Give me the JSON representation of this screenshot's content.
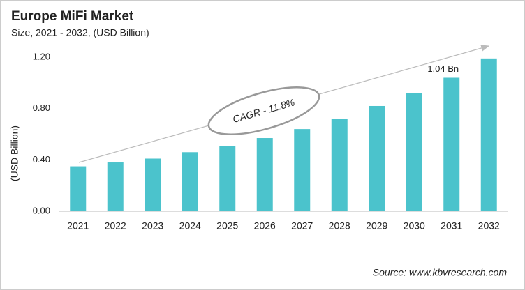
{
  "chart_data": {
    "type": "bar",
    "title": "Europe MiFi Market",
    "subtitle": "Size, 2021 - 2032, (USD Billion)",
    "y_label": "(USD Billion)",
    "categories": [
      "2021",
      "2022",
      "2023",
      "2024",
      "2025",
      "2026",
      "2027",
      "2028",
      "2029",
      "2030",
      "2031",
      "2032"
    ],
    "values": [
      0.35,
      0.38,
      0.41,
      0.46,
      0.51,
      0.57,
      0.64,
      0.72,
      0.82,
      0.92,
      1.04,
      1.19
    ],
    "value_labels": [
      null,
      null,
      null,
      null,
      null,
      null,
      null,
      null,
      null,
      null,
      "1.04 Bn",
      null
    ],
    "color": "#4bc3cc",
    "ylim": [
      0,
      1.2
    ],
    "yticks": [
      {
        "value": 0,
        "label": "0.00"
      },
      {
        "value": 0.4,
        "label": "0.40"
      },
      {
        "value": 0.8,
        "label": "0.80"
      },
      {
        "value": 1.2,
        "label": "1.20"
      }
    ],
    "annotation": "CAGR - 11.8%",
    "source": "Source: www.kbvresearch.com"
  }
}
